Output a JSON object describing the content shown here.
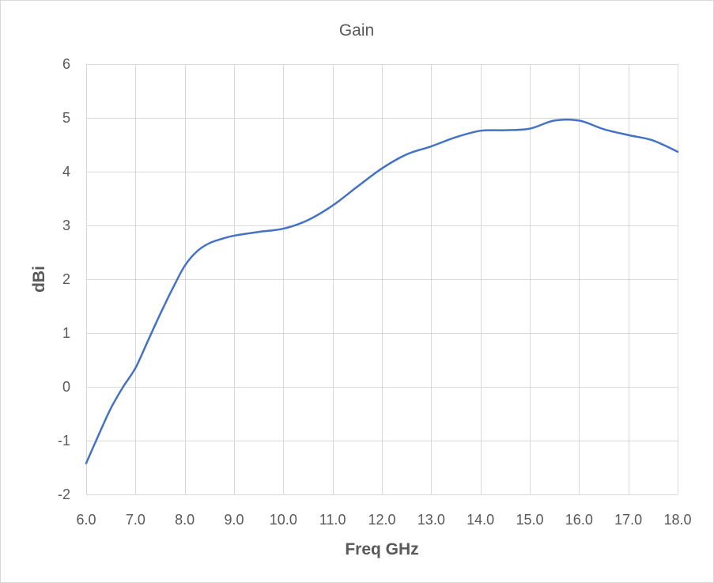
{
  "chart_data": {
    "type": "line",
    "title": "Gain",
    "xlabel": "Freq GHz",
    "ylabel": "dBi",
    "xlim": [
      6.0,
      18.0
    ],
    "ylim": [
      -2,
      6
    ],
    "x_ticks": [
      "6.0",
      "7.0",
      "8.0",
      "9.0",
      "10.0",
      "11.0",
      "12.0",
      "13.0",
      "14.0",
      "15.0",
      "16.0",
      "17.0",
      "18.0"
    ],
    "y_ticks": [
      "6",
      "5",
      "4",
      "3",
      "2",
      "1",
      "0",
      "-1",
      "-2"
    ],
    "grid": true,
    "series": [
      {
        "color": "#4472c4",
        "x": [
          6.0,
          6.25,
          6.5,
          6.75,
          7.0,
          7.25,
          7.5,
          7.75,
          8.0,
          8.25,
          8.5,
          8.75,
          9.0,
          9.5,
          10.0,
          10.5,
          11.0,
          11.5,
          12.0,
          12.5,
          13.0,
          13.5,
          14.0,
          14.5,
          15.0,
          15.5,
          16.0,
          16.5,
          17.0,
          17.5,
          18.0
        ],
        "y": [
          -1.42,
          -0.9,
          -0.4,
          0.0,
          0.35,
          0.85,
          1.35,
          1.82,
          2.25,
          2.52,
          2.67,
          2.75,
          2.81,
          2.88,
          2.94,
          3.1,
          3.37,
          3.72,
          4.06,
          4.32,
          4.47,
          4.64,
          4.76,
          4.77,
          4.8,
          4.95,
          4.95,
          4.79,
          4.68,
          4.58,
          4.37
        ]
      }
    ]
  }
}
